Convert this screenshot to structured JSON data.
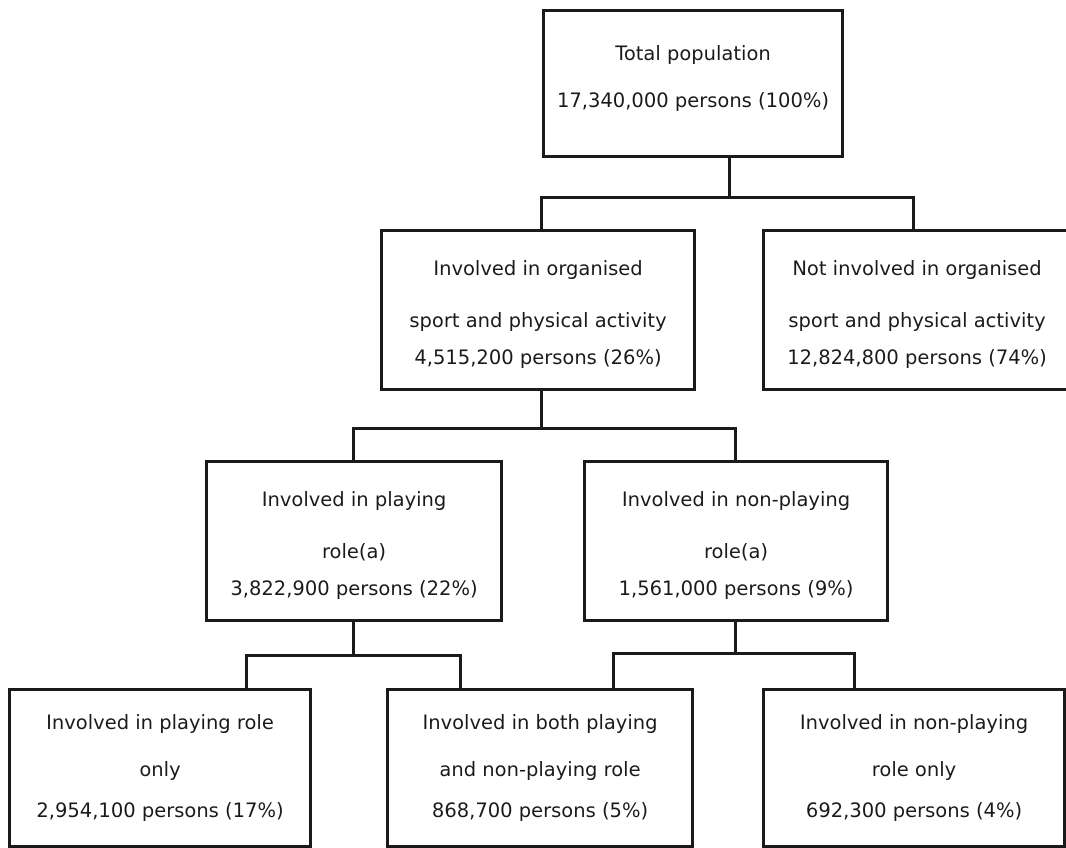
{
  "nodes": {
    "total": {
      "lines": [
        "Total population"
      ],
      "value": "17,340,000 persons (100%)"
    },
    "involved": {
      "lines": [
        "Involved in organised",
        "sport and physical activity"
      ],
      "value": "4,515,200 persons (26%)"
    },
    "not_involved": {
      "lines": [
        "Not involved in organised",
        "sport and physical activity"
      ],
      "value": "12,824,800 persons (74%)"
    },
    "playing": {
      "lines": [
        "Involved in playing",
        "role(a)"
      ],
      "value": "3,822,900 persons (22%)"
    },
    "non_playing": {
      "lines": [
        "Involved in non-playing",
        "role(a)"
      ],
      "value": "1,561,000 persons (9%)"
    },
    "playing_only": {
      "lines": [
        "Involved in playing role",
        "only"
      ],
      "value": "2,954,100 persons (17%)"
    },
    "both": {
      "lines": [
        "Involved in both playing",
        "and non-playing role"
      ],
      "value": "868,700 persons (5%)"
    },
    "non_playing_only": {
      "lines": [
        "Involved in non-playing",
        "role only"
      ],
      "value": "692,300 persons (4%)"
    }
  },
  "edges": [
    [
      "total",
      "involved"
    ],
    [
      "total",
      "not_involved"
    ],
    [
      "involved",
      "playing"
    ],
    [
      "involved",
      "non_playing"
    ],
    [
      "playing",
      "playing_only"
    ],
    [
      "playing",
      "both"
    ],
    [
      "non_playing",
      "both"
    ],
    [
      "non_playing",
      "non_playing_only"
    ]
  ]
}
